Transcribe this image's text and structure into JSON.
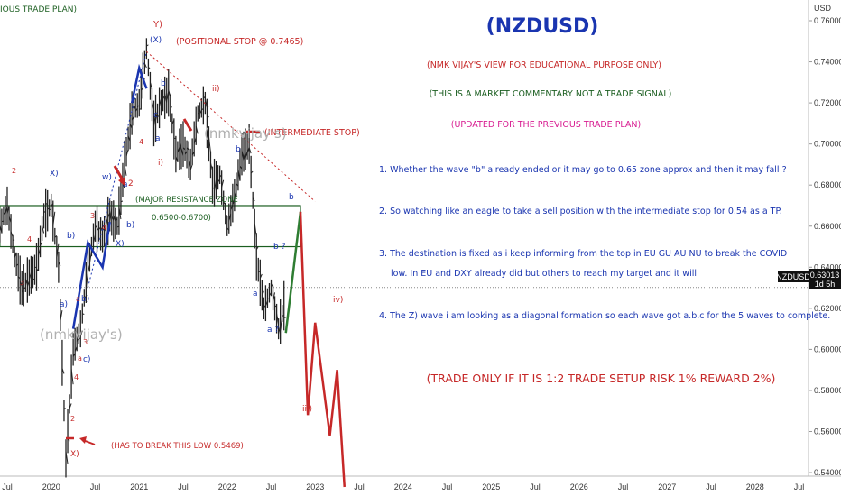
{
  "header": {
    "plan_label": "IOUS TRADE PLAN)",
    "title": "(NZDUSD)",
    "line1": "(NMK VIJAY'S VIEW FOR EDUCATIONAL PURPOSE ONLY)",
    "line2": "(THIS IS A MARKET COMMENTARY NOT A TRADE SIGNAL)",
    "line3": "(UPDATED FOR THE PREVIOUS TRADE PLAN)"
  },
  "notes": [
    "1. Whether the wave \"b\" already ended or it may go to 0.65 zone approx and then it may fall ?",
    "2. So watching like an eagle to take a sell position with the intermediate stop for 0.54 as a TP.",
    "3. The destination is fixed as i keep informing from the top in EU GU AU NU to break the COVID",
    "low. In EU and DXY already did but others to reach my target and it will.",
    "4. The Z) wave i am looking as a diagonal formation so each wave got a.b.c for the 5 waves to complete."
  ],
  "trade_note": "(TRADE ONLY IF IT IS 1:2 TRADE SETUP RISK 1% REWARD 2%)",
  "annotations": {
    "positional_stop": "(POSITIONAL STOP @ 0.7465)",
    "intermediate_stop": "(INTERMEDIATE STOP)",
    "zone_title": "(MAJOR RESISTANCE ZONE",
    "zone_range": "0.6500-0.6700)",
    "break_low": "(HAS TO BREAK THIS LOW 0.5469)",
    "watermark": "(nmkvijay's)"
  },
  "price_badge": {
    "symbol": "NZDUSD",
    "price": "0.63013",
    "countdown": "1d 5h"
  },
  "colors": {
    "red": "#c62828",
    "blue": "#1a35b0",
    "green": "#1b5e20",
    "magenta": "#d81b90",
    "projection_red": "#c62828",
    "projection_green": "#2e7d32",
    "zone_border": "#1b5e20"
  },
  "chart_data": {
    "type": "line",
    "symbol": "NZDUSD",
    "y_axis_currency": "USD",
    "ylim": [
      0.53,
      0.77
    ],
    "y_ticks": [
      "0.76000",
      "0.74000",
      "0.72000",
      "0.70000",
      "0.68000",
      "0.66000",
      "0.64000",
      "0.62000",
      "0.60000",
      "0.58000",
      "0.56000",
      "0.54000"
    ],
    "y_tick_values": [
      0.76,
      0.74,
      0.72,
      0.7,
      0.68,
      0.66,
      0.64,
      0.62,
      0.6,
      0.58,
      0.56,
      0.54
    ],
    "x_ticks": [
      "Jul",
      "2020",
      "Jul",
      "2021",
      "Jul",
      "2022",
      "Jul",
      "2023",
      "Jul",
      "2024",
      "Jul",
      "2025",
      "Jul",
      "2026",
      "Jul",
      "2027",
      "Jul",
      "2028",
      "Jul"
    ],
    "x_tick_dates": [
      "2019-07",
      "2020-01",
      "2020-07",
      "2021-01",
      "2021-07",
      "2022-01",
      "2022-07",
      "2023-01",
      "2023-07",
      "2024-01",
      "2024-07",
      "2025-01",
      "2025-07",
      "2026-01",
      "2026-07",
      "2027-01",
      "2027-07",
      "2028-01",
      "2028-07"
    ],
    "current_price": 0.63013,
    "resistance_zone": {
      "low": 0.65,
      "high": 0.67,
      "start": "2019-06",
      "end": "2022-11"
    },
    "positional_stop": 0.7465,
    "price_series": [
      {
        "date": "2019-06",
        "value": 0.66
      },
      {
        "date": "2019-07",
        "value": 0.67
      },
      {
        "date": "2019-08",
        "value": 0.645
      },
      {
        "date": "2019-09",
        "value": 0.63
      },
      {
        "date": "2019-10",
        "value": 0.635
      },
      {
        "date": "2019-11",
        "value": 0.64
      },
      {
        "date": "2019-12",
        "value": 0.665
      },
      {
        "date": "2020-01",
        "value": 0.67
      },
      {
        "date": "2020-02",
        "value": 0.64
      },
      {
        "date": "2020-03",
        "value": 0.5469
      },
      {
        "date": "2020-04",
        "value": 0.6
      },
      {
        "date": "2020-05",
        "value": 0.61
      },
      {
        "date": "2020-06",
        "value": 0.64
      },
      {
        "date": "2020-07",
        "value": 0.66
      },
      {
        "date": "2020-08",
        "value": 0.655
      },
      {
        "date": "2020-09",
        "value": 0.665
      },
      {
        "date": "2020-10",
        "value": 0.66
      },
      {
        "date": "2020-11",
        "value": 0.69
      },
      {
        "date": "2020-12",
        "value": 0.715
      },
      {
        "date": "2021-01",
        "value": 0.72
      },
      {
        "date": "2021-02",
        "value": 0.7465
      },
      {
        "date": "2021-03",
        "value": 0.71
      },
      {
        "date": "2021-04",
        "value": 0.72
      },
      {
        "date": "2021-05",
        "value": 0.725
      },
      {
        "date": "2021-06",
        "value": 0.695
      },
      {
        "date": "2021-07",
        "value": 0.7
      },
      {
        "date": "2021-08",
        "value": 0.69
      },
      {
        "date": "2021-09",
        "value": 0.715
      },
      {
        "date": "2021-10",
        "value": 0.72
      },
      {
        "date": "2021-11",
        "value": 0.68
      },
      {
        "date": "2021-12",
        "value": 0.685
      },
      {
        "date": "2022-01",
        "value": 0.66
      },
      {
        "date": "2022-02",
        "value": 0.675
      },
      {
        "date": "2022-03",
        "value": 0.695
      },
      {
        "date": "2022-04",
        "value": 0.7
      },
      {
        "date": "2022-05",
        "value": 0.645
      },
      {
        "date": "2022-06",
        "value": 0.62
      },
      {
        "date": "2022-07",
        "value": 0.63
      },
      {
        "date": "2022-08",
        "value": 0.61
      },
      {
        "date": "2022-09",
        "value": 0.625
      }
    ],
    "projection_green": [
      {
        "date": "2022-09",
        "value": 0.608
      },
      {
        "date": "2022-11",
        "value": 0.667
      }
    ],
    "projection_red": [
      {
        "date": "2022-11",
        "value": 0.667
      },
      {
        "date": "2022-12",
        "value": 0.568
      },
      {
        "date": "2023-01",
        "value": 0.613
      },
      {
        "date": "2023-03",
        "value": 0.558
      },
      {
        "date": "2023-04",
        "value": 0.59
      },
      {
        "date": "2023-05",
        "value": 0.533
      }
    ],
    "dotted_trendline": [
      {
        "date": "2021-02",
        "value": 0.745
      },
      {
        "date": "2023-01",
        "value": 0.672
      }
    ]
  }
}
